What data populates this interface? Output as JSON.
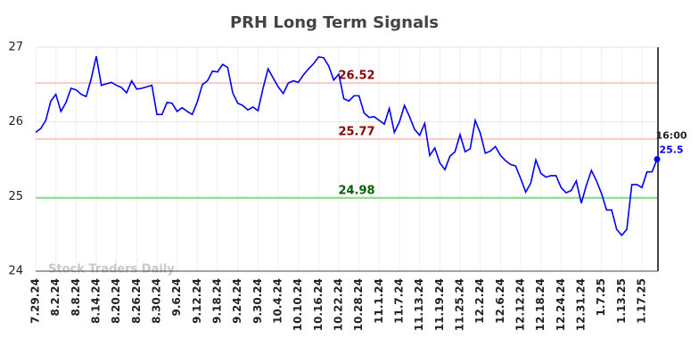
{
  "chart_data": {
    "type": "line",
    "title": "PRH Long Term Signals",
    "categories": [
      "7.29.24",
      null,
      null,
      null,
      "8.2.24",
      null,
      null,
      null,
      "8.8.24",
      null,
      null,
      null,
      "8.14.24",
      null,
      null,
      null,
      "8.20.24",
      null,
      null,
      null,
      "8.26.24",
      null,
      null,
      null,
      "8.30.24",
      null,
      null,
      null,
      "9.6.24",
      null,
      null,
      null,
      "9.12.24",
      null,
      null,
      null,
      "9.18.24",
      null,
      null,
      null,
      "9.24.24",
      null,
      null,
      null,
      "9.30.24",
      null,
      null,
      null,
      "10.4.24",
      null,
      null,
      null,
      "10.10.24",
      null,
      null,
      null,
      "10.16.24",
      null,
      null,
      null,
      "10.22.24",
      null,
      null,
      null,
      "10.28.24",
      null,
      null,
      null,
      "11.1.24",
      null,
      null,
      null,
      "11.7.24",
      null,
      null,
      null,
      "11.13.24",
      null,
      null,
      null,
      "11.19.24",
      null,
      null,
      null,
      "11.25.24",
      null,
      null,
      null,
      "12.2.24",
      null,
      null,
      null,
      "12.6.24",
      null,
      null,
      null,
      "12.12.24",
      null,
      null,
      null,
      "12.18.24",
      null,
      null,
      null,
      "12.24.24",
      null,
      null,
      null,
      "12.31.24",
      null,
      null,
      null,
      "1.7.25",
      null,
      null,
      null,
      "1.13.25",
      null,
      null,
      null,
      "1.17.25",
      null,
      null,
      null
    ],
    "series": [
      {
        "name": "PRH",
        "color": "#0000ee",
        "values": [
          25.86,
          25.91,
          26.02,
          26.28,
          26.37,
          26.14,
          26.26,
          26.45,
          26.43,
          26.37,
          26.34,
          26.58,
          26.88,
          26.49,
          26.51,
          26.53,
          26.49,
          26.46,
          26.39,
          26.55,
          26.44,
          26.45,
          26.47,
          26.49,
          26.1,
          26.1,
          26.26,
          26.25,
          26.14,
          26.19,
          26.14,
          26.1,
          26.27,
          26.5,
          26.55,
          26.68,
          26.67,
          26.77,
          26.73,
          26.39,
          26.25,
          26.22,
          26.16,
          26.2,
          26.15,
          26.45,
          26.71,
          26.59,
          26.47,
          26.38,
          26.52,
          26.55,
          26.53,
          26.63,
          26.71,
          26.78,
          26.87,
          26.86,
          26.75,
          26.56,
          26.64,
          26.31,
          26.28,
          26.35,
          26.35,
          26.12,
          26.06,
          26.07,
          26.02,
          25.97,
          26.18,
          25.86,
          26.0,
          26.22,
          26.07,
          25.9,
          25.82,
          25.98,
          25.55,
          25.65,
          25.45,
          25.36,
          25.54,
          25.6,
          25.83,
          25.6,
          25.64,
          26.02,
          25.85,
          25.58,
          25.61,
          25.67,
          25.55,
          25.48,
          25.43,
          25.41,
          25.24,
          25.06,
          25.18,
          25.49,
          25.31,
          25.26,
          25.28,
          25.28,
          25.12,
          25.05,
          25.08,
          25.21,
          24.91,
          25.15,
          25.35,
          25.21,
          25.04,
          24.82,
          24.82,
          24.56,
          24.48,
          24.56,
          25.16,
          25.16,
          25.12,
          25.33,
          25.33,
          25.5
        ]
      }
    ],
    "end_time": "16:00",
    "levels": [
      {
        "value": 26.52,
        "color": "#ffc8c8",
        "label_color": "#8b0000"
      },
      {
        "value": 25.77,
        "color": "#ffc8c8",
        "label_color": "#8b0000"
      },
      {
        "value": 24.98,
        "color": "#90e090",
        "label_color": "#006400"
      }
    ],
    "watermark": "Stock Traders Daily",
    "ylim": [
      24,
      27
    ],
    "yticks": [
      24,
      25,
      26,
      27
    ],
    "grid": true
  }
}
